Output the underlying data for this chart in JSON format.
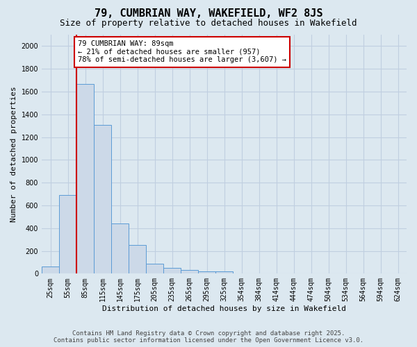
{
  "title": "79, CUMBRIAN WAY, WAKEFIELD, WF2 8JS",
  "subtitle": "Size of property relative to detached houses in Wakefield",
  "xlabel": "Distribution of detached houses by size in Wakefield",
  "ylabel": "Number of detached properties",
  "categories": [
    "25sqm",
    "55sqm",
    "85sqm",
    "115sqm",
    "145sqm",
    "175sqm",
    "205sqm",
    "235sqm",
    "265sqm",
    "295sqm",
    "325sqm",
    "354sqm",
    "384sqm",
    "414sqm",
    "444sqm",
    "474sqm",
    "504sqm",
    "534sqm",
    "564sqm",
    "594sqm",
    "624sqm"
  ],
  "bar_values": [
    60,
    690,
    1670,
    1310,
    440,
    250,
    90,
    50,
    30,
    20,
    20,
    5,
    5,
    3,
    2,
    2,
    0,
    0,
    0,
    0,
    0
  ],
  "bar_color": "#ccd9e8",
  "bar_edgecolor": "#5b9bd5",
  "background_color": "#dce8f0",
  "grid_color": "#c0cfe0",
  "vline_color": "#cc0000",
  "annotation_text": "79 CUMBRIAN WAY: 89sqm\n← 21% of detached houses are smaller (957)\n78% of semi-detached houses are larger (3,607) →",
  "annotation_box_edgecolor": "#cc0000",
  "annotation_box_facecolor": "#ffffff",
  "ylim": [
    0,
    2100
  ],
  "yticks": [
    0,
    200,
    400,
    600,
    800,
    1000,
    1200,
    1400,
    1600,
    1800,
    2000
  ],
  "footer_line1": "Contains HM Land Registry data © Crown copyright and database right 2025.",
  "footer_line2": "Contains public sector information licensed under the Open Government Licence v3.0.",
  "title_fontsize": 11,
  "subtitle_fontsize": 9,
  "axis_label_fontsize": 8,
  "tick_fontsize": 7,
  "annotation_fontsize": 7.5,
  "footer_fontsize": 6.5
}
